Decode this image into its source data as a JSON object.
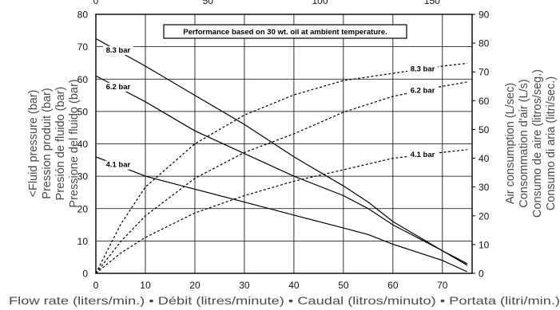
{
  "chart_data": {
    "type": "line",
    "note": "Performance based on 30 wt. oil at ambient temperature.",
    "xlabel": "Flow rate (liters/min.) • Débit (litres/minute) • Caudal (litros/minuto) • Portata (litri/min.)",
    "ylabel_left": [
      "<Fluid pressure (bar)",
      "Pression produit (bar)",
      "Presión de fluido (bar)",
      "Pressione del fluido (bar)"
    ],
    "ylabel_right": [
      "Air consumption (L/sec)",
      "Consommation d'air (L/s)",
      "Consumo de aire (litros/seg.)",
      "Consumo di aria (litri/sec.)"
    ],
    "x_ticks_bottom": [
      "0",
      "10",
      "20",
      "30",
      "40",
      "50",
      "60",
      "70"
    ],
    "x_ticks_top": [
      "0",
      "50",
      "100",
      "150"
    ],
    "y_ticks_left": [
      "0",
      "10",
      "20",
      "30",
      "40",
      "50",
      "60",
      "70",
      "80"
    ],
    "y_ticks_right": [
      "0",
      "10",
      "20",
      "30",
      "40",
      "50",
      "60",
      "70",
      "80",
      "90"
    ],
    "xlim": [
      0,
      76
    ],
    "ylim_left": [
      0,
      80
    ],
    "ylim_right": [
      0,
      90
    ],
    "x2lim_top": [
      0,
      167.9
    ],
    "grid": true,
    "series": [
      {
        "name": "8.3 bar",
        "kind": "fluid_pressure",
        "axis": "left",
        "style": "solid",
        "x": [
          0,
          10,
          20,
          30,
          40,
          50,
          55,
          60,
          70,
          75
        ],
        "y": [
          72.5,
          64,
          55,
          46,
          36,
          27,
          22,
          16,
          7,
          2.5
        ]
      },
      {
        "name": "6.2 bar",
        "kind": "fluid_pressure",
        "axis": "left",
        "style": "solid",
        "x": [
          0,
          10,
          20,
          30,
          40,
          50,
          55,
          60,
          70,
          75
        ],
        "y": [
          61,
          53,
          44,
          37,
          30,
          24,
          20,
          15,
          7,
          3
        ]
      },
      {
        "name": "4.1 bar",
        "kind": "fluid_pressure",
        "axis": "left",
        "style": "solid",
        "x": [
          0,
          10,
          20,
          30,
          40,
          50,
          55,
          60,
          70,
          75
        ],
        "y": [
          36,
          30,
          26,
          22,
          18,
          14,
          12,
          9,
          4,
          0.5
        ]
      },
      {
        "name": "8.3 bar",
        "kind": "air_consumption",
        "axis": "right",
        "style": "dashed",
        "x": [
          0,
          5,
          10,
          20,
          30,
          40,
          50,
          60,
          70,
          75
        ],
        "y": [
          0,
          17,
          30,
          45,
          55,
          62,
          67,
          69.5,
          72,
          73
        ]
      },
      {
        "name": "6.2 bar",
        "kind": "air_consumption",
        "axis": "right",
        "style": "dashed",
        "x": [
          0,
          5,
          10,
          20,
          30,
          40,
          50,
          60,
          70,
          75
        ],
        "y": [
          0,
          11,
          20,
          33,
          42,
          48.5,
          56,
          61.5,
          65,
          66.5
        ]
      },
      {
        "name": "4.1 bar",
        "kind": "air_consumption",
        "axis": "right",
        "style": "dashed",
        "x": [
          0,
          5,
          10,
          20,
          30,
          40,
          50,
          60,
          70,
          75
        ],
        "y": [
          0,
          7,
          12.5,
          21,
          27,
          32,
          36,
          40,
          42,
          43
        ]
      }
    ]
  }
}
